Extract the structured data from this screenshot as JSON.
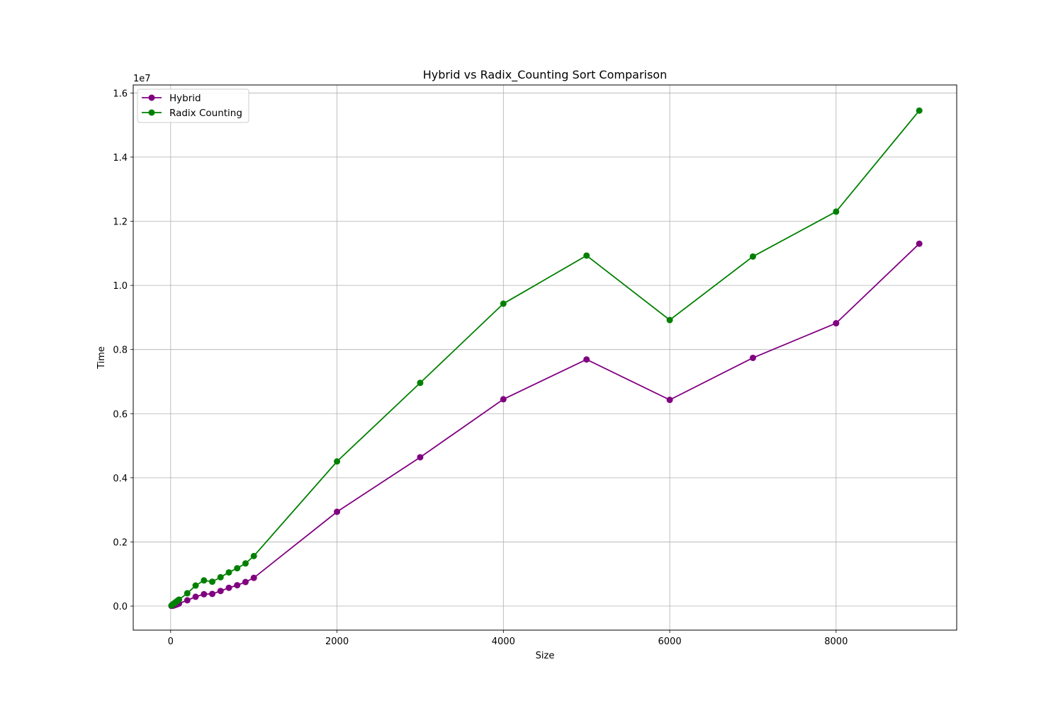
{
  "chart_data": {
    "type": "line",
    "title": "Hybrid vs Radix_Counting Sort Comparison",
    "xlabel": "Size",
    "ylabel": "Time",
    "y_offset_label": "1e7",
    "xlim": [
      -450,
      9450
    ],
    "ylim": [
      -750000,
      16250000
    ],
    "x_ticks": [
      0,
      2000,
      4000,
      6000,
      8000
    ],
    "x_tick_labels": [
      "0",
      "2000",
      "4000",
      "6000",
      "8000"
    ],
    "y_ticks": [
      0,
      2000000,
      4000000,
      6000000,
      8000000,
      10000000,
      12000000,
      14000000,
      16000000
    ],
    "y_tick_labels": [
      "0.0",
      "0.2",
      "0.4",
      "0.6",
      "0.8",
      "1.0",
      "1.2",
      "1.4",
      "1.6"
    ],
    "grid": true,
    "legend_position": "upper-left",
    "x": [
      10,
      20,
      30,
      40,
      50,
      60,
      70,
      80,
      90,
      100,
      200,
      300,
      400,
      500,
      600,
      700,
      800,
      900,
      1000,
      2000,
      3000,
      4000,
      5000,
      6000,
      7000,
      8000,
      9000
    ],
    "series": [
      {
        "name": "Hybrid",
        "color": "#800080",
        "values": [
          5000,
          10000,
          15000,
          20000,
          30000,
          40000,
          50000,
          60000,
          70000,
          80000,
          180000,
          290000,
          370000,
          380000,
          470000,
          570000,
          650000,
          750000,
          880000,
          2940000,
          4640000,
          6450000,
          7690000,
          6430000,
          7740000,
          8820000,
          11300000
        ]
      },
      {
        "name": "Radix Counting",
        "color": "#008000",
        "values": [
          20000,
          40000,
          60000,
          80000,
          100000,
          120000,
          140000,
          160000,
          180000,
          200000,
          400000,
          640000,
          800000,
          760000,
          900000,
          1050000,
          1180000,
          1330000,
          1560000,
          4510000,
          6960000,
          9430000,
          10930000,
          8920000,
          10900000,
          12300000,
          15450000
        ]
      }
    ]
  }
}
